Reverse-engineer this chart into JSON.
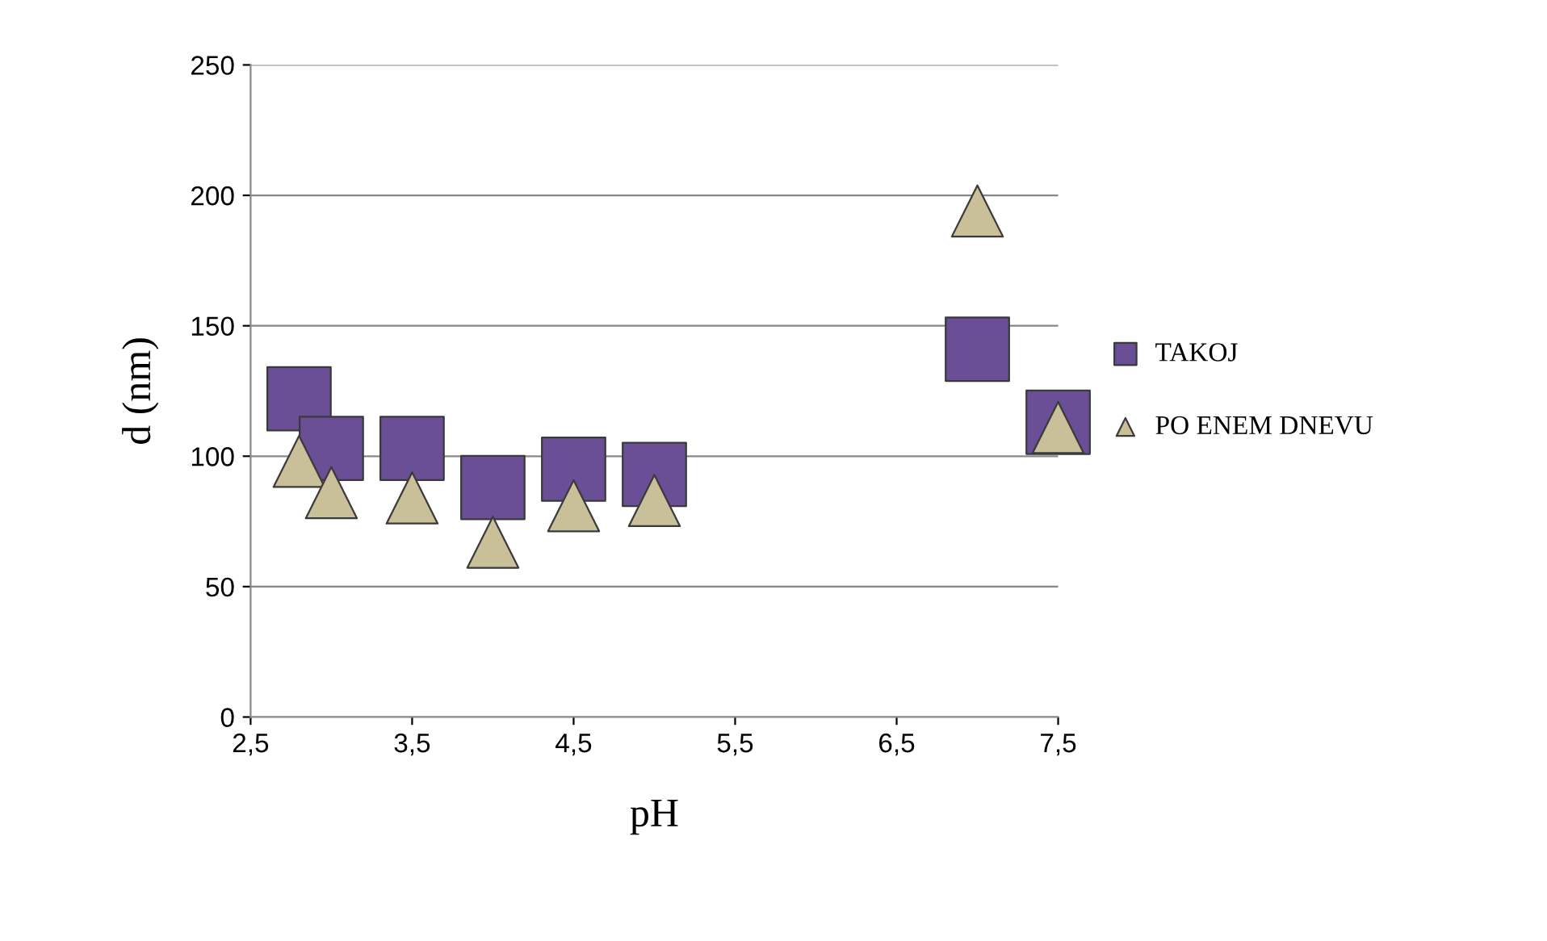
{
  "chart_data": {
    "type": "scatter",
    "xlabel": "pH",
    "ylabel": "d (nm)",
    "xlim": [
      2.5,
      7.5
    ],
    "xticks": [
      {
        "value": 2.5,
        "label": "2,5"
      },
      {
        "value": 3.5,
        "label": "3,5"
      },
      {
        "value": 4.5,
        "label": "4,5"
      },
      {
        "value": 5.5,
        "label": "5,5"
      },
      {
        "value": 6.5,
        "label": "6,5"
      },
      {
        "value": 7.5,
        "label": "7,5"
      }
    ],
    "ylim": [
      0,
      250
    ],
    "yticks": [
      0,
      50,
      100,
      150,
      200,
      250
    ],
    "grid": "y",
    "legend": "right",
    "series": [
      {
        "name": "TAKOJ",
        "color": "#6a4f96",
        "marker": "square",
        "x": [
          2.8,
          3.0,
          3.5,
          4.0,
          4.5,
          5.0,
          7.0,
          7.5
        ],
        "values": [
          122,
          103,
          103,
          88,
          95,
          93,
          141,
          113
        ]
      },
      {
        "name": "PO ENEM DNEVU",
        "color": "#c9c09a",
        "marker": "triangle",
        "x": [
          2.8,
          3.0,
          3.5,
          4.0,
          4.5,
          5.0,
          7.0,
          7.5
        ],
        "values": [
          98,
          86,
          84,
          67,
          81,
          83,
          194,
          111
        ]
      }
    ]
  }
}
